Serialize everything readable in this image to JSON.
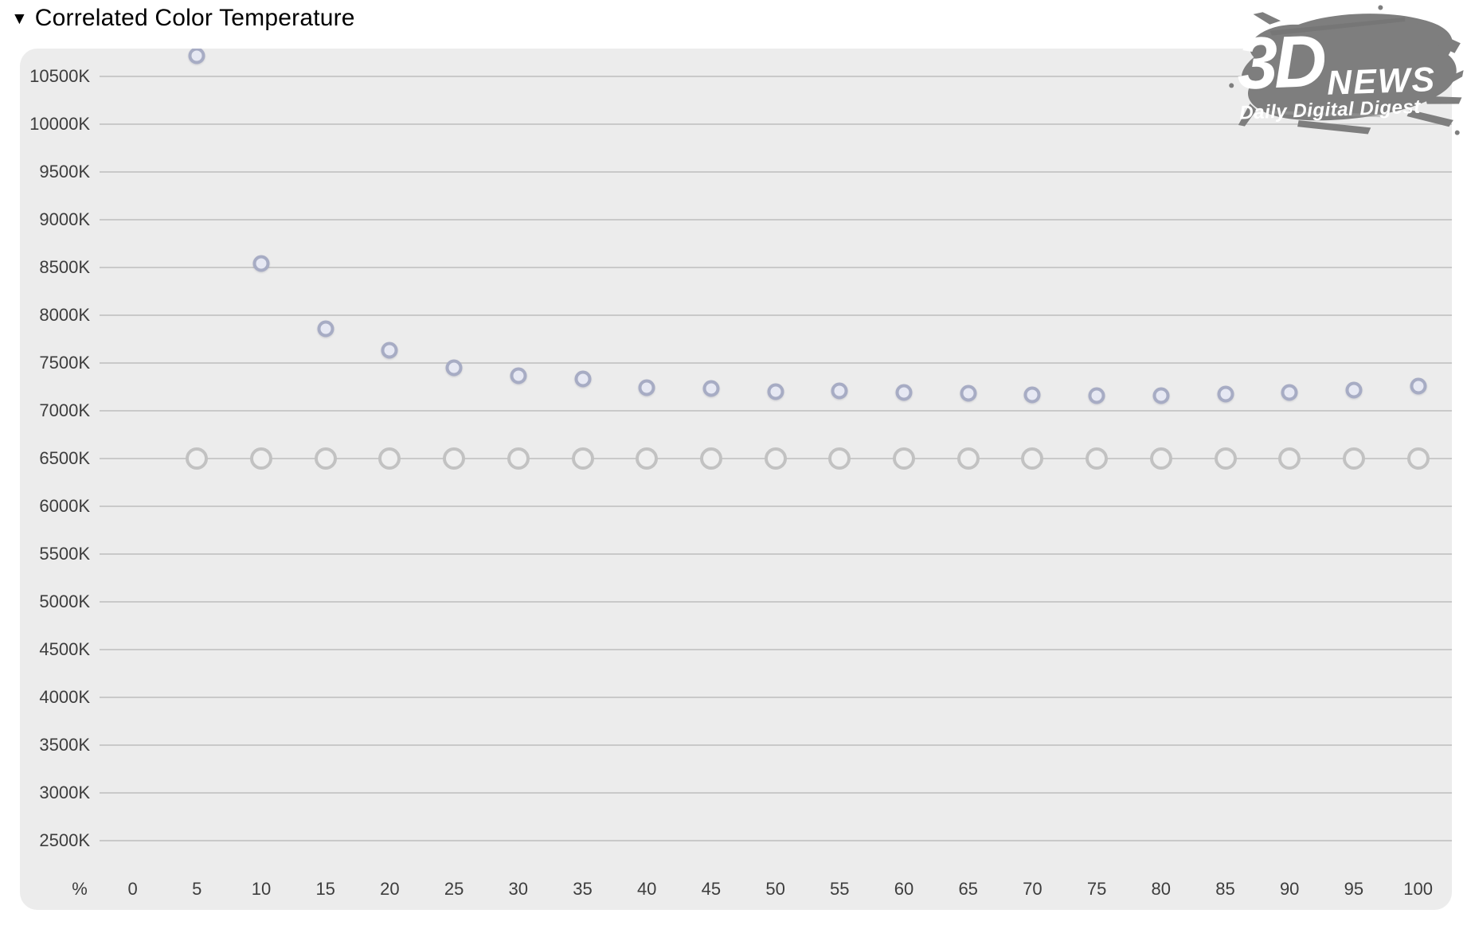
{
  "page": {
    "collapse_icon": "▼",
    "title": "Correlated Color Temperature"
  },
  "logo": {
    "big": "3D",
    "news": "NEWS",
    "tagline": "Daily Digital Digest",
    "blob_color": "#7e7e7e",
    "text_color": "#ffffff"
  },
  "chart_data": {
    "type": "scatter",
    "title": "Correlated Color Temperature",
    "xlabel": "%",
    "ylabel": "",
    "grid": "horizontal",
    "legend": "none",
    "background": "#ececec",
    "gridline_color": "#c9c9c9",
    "tick_color": "#3d3d3d",
    "x_ticks": [
      0,
      5,
      10,
      15,
      20,
      25,
      30,
      35,
      40,
      45,
      50,
      55,
      60,
      65,
      70,
      75,
      80,
      85,
      90,
      95,
      100
    ],
    "y_tick_labels": [
      "10500K",
      "10000K",
      "9500K",
      "9000K",
      "8500K",
      "8000K",
      "7500K",
      "7000K",
      "6500K",
      "6000K",
      "5500K",
      "5000K",
      "4500K",
      "4000K",
      "3500K",
      "3000K",
      "2500K"
    ],
    "ylim": [
      1775,
      10790
    ],
    "x": [
      5,
      10,
      15,
      20,
      25,
      30,
      35,
      40,
      45,
      50,
      55,
      60,
      65,
      70,
      75,
      80,
      85,
      90,
      95,
      100
    ],
    "series": [
      {
        "name": "measured-cct",
        "marker": "circle-small",
        "stroke": "#a7acc4",
        "fill": "#e6e8f3",
        "values": [
          10720,
          8540,
          7860,
          7630,
          7450,
          7370,
          7330,
          7240,
          7230,
          7200,
          7210,
          7190,
          7180,
          7165,
          7160,
          7160,
          7175,
          7190,
          7215,
          7260
        ]
      },
      {
        "name": "reference-6500K",
        "marker": "circle-large",
        "stroke": "#c2c2c2",
        "fill": "#efefef",
        "values": [
          6500,
          6500,
          6500,
          6500,
          6500,
          6500,
          6500,
          6500,
          6500,
          6500,
          6500,
          6500,
          6500,
          6500,
          6500,
          6500,
          6500,
          6500,
          6500,
          6500
        ]
      }
    ]
  }
}
